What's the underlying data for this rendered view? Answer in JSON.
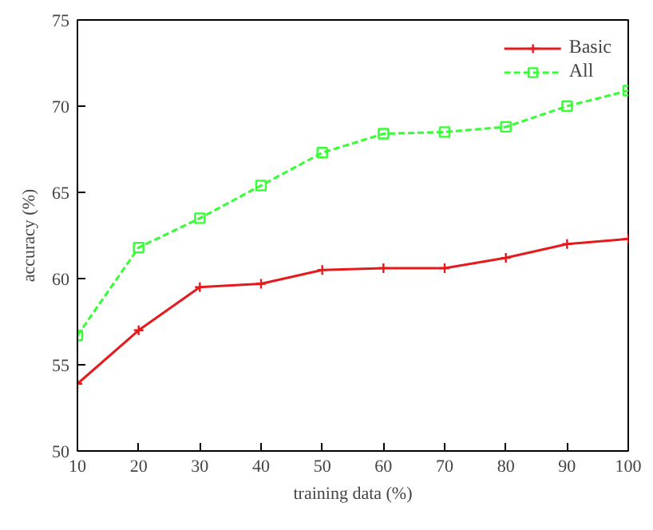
{
  "chart_data": {
    "type": "line",
    "xlabel": "training data (%)",
    "ylabel": "accuracy (%)",
    "x": [
      10,
      20,
      30,
      40,
      50,
      60,
      70,
      80,
      90,
      100
    ],
    "series": [
      {
        "name": "Basic",
        "color": "#e41a1c",
        "marker": "cross",
        "line_style": "solid",
        "values": [
          53.9,
          57.0,
          59.5,
          59.7,
          60.5,
          60.6,
          60.6,
          61.2,
          62.0,
          62.3
        ]
      },
      {
        "name": "All",
        "color": "#33ff33",
        "marker": "square",
        "line_style": "dashed",
        "values": [
          56.7,
          61.8,
          63.5,
          65.4,
          67.3,
          68.4,
          68.5,
          68.8,
          70.0,
          70.9
        ]
      }
    ],
    "xlim": [
      10,
      100
    ],
    "ylim": [
      50,
      75
    ],
    "xticks": [
      10,
      20,
      30,
      40,
      50,
      60,
      70,
      80,
      90,
      100
    ],
    "yticks": [
      50,
      55,
      60,
      65,
      70,
      75
    ],
    "grid": false,
    "legend": "top right"
  }
}
